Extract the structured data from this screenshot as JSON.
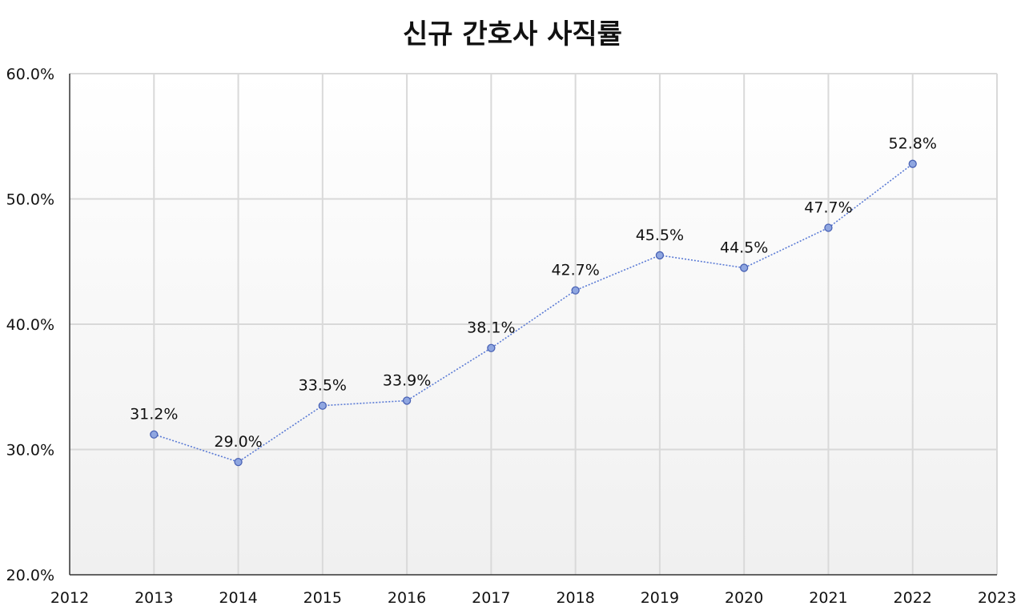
{
  "chart_data": {
    "type": "line",
    "title": "신규 간호사 사직률",
    "xlabel": "",
    "ylabel": "",
    "x": [
      2013,
      2014,
      2015,
      2016,
      2017,
      2018,
      2019,
      2020,
      2021,
      2022
    ],
    "series": [
      {
        "values": [
          31.2,
          29.0,
          33.5,
          33.9,
          38.1,
          42.7,
          45.5,
          44.5,
          47.7,
          52.8
        ],
        "labels": [
          "31.2%",
          "29.0%",
          "33.5%",
          "33.9%",
          "38.1%",
          "42.7%",
          "45.5%",
          "44.5%",
          "47.7%",
          "52.8%"
        ]
      }
    ],
    "xlim": [
      2012,
      2023
    ],
    "ylim": [
      20,
      60
    ],
    "x_ticks": [
      "2012",
      "2013",
      "2014",
      "2015",
      "2016",
      "2017",
      "2018",
      "2019",
      "2020",
      "2021",
      "2022",
      "2023"
    ],
    "y_ticks": [
      "20.0%",
      "30.0%",
      "40.0%",
      "50.0%",
      "60.0%"
    ],
    "grid": true,
    "line_style": "dotted",
    "colors": {
      "line": "#5b7bd5",
      "marker_fill": "#8fa6e0",
      "marker_stroke": "#4a63b5",
      "plot_bg_top": "#ffffff",
      "plot_bg_bottom": "#f0f0f0"
    }
  }
}
